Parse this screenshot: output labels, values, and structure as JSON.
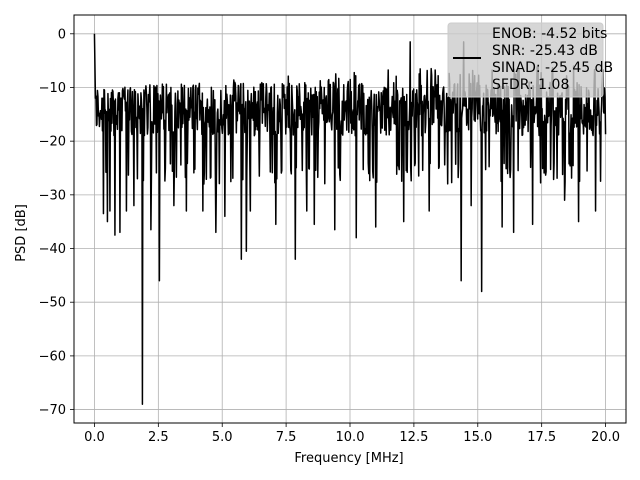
{
  "chart_data": {
    "type": "line",
    "xlabel": "Frequency [MHz]",
    "ylabel": "PSD [dB]",
    "xlim": [
      -0.8,
      20.8
    ],
    "ylim": [
      -72.5,
      3.5
    ],
    "xticks": [
      0.0,
      2.5,
      5.0,
      7.5,
      10.0,
      12.5,
      15.0,
      17.5,
      20.0
    ],
    "xtick_labels": [
      "0.0",
      "2.5",
      "5.0",
      "7.5",
      "10.0",
      "12.5",
      "15.0",
      "17.5",
      "20.0"
    ],
    "yticks": [
      0,
      -10,
      -20,
      -30,
      -40,
      -50,
      -60,
      -70
    ],
    "ytick_labels": [
      "0",
      "−10",
      "−20",
      "−30",
      "−40",
      "−50",
      "−60",
      "−70"
    ],
    "grid": true,
    "legend_position": "top-right",
    "series": [
      {
        "color": "#000000",
        "x_range": [
          0.0,
          20.0
        ],
        "num_points": 1024,
        "baseline_db": -14,
        "upper_envelope_db": [
          [
            0.0,
            -10
          ],
          [
            4.0,
            -9
          ],
          [
            10.0,
            -7
          ],
          [
            15.0,
            -6
          ],
          [
            20.0,
            -6
          ]
        ],
        "lower_envelope_db": -28,
        "peaks": [
          [
            0.0,
            0
          ],
          [
            12.35,
            -1.5
          ],
          [
            14.45,
            -1.5
          ]
        ],
        "dips": [
          [
            0.35,
            -33.5
          ],
          [
            0.5,
            -35
          ],
          [
            0.6,
            -33
          ],
          [
            0.8,
            -37.5
          ],
          [
            1.0,
            -37
          ],
          [
            1.25,
            -33
          ],
          [
            1.55,
            -32
          ],
          [
            1.88,
            -69
          ],
          [
            2.2,
            -36.5
          ],
          [
            2.55,
            -46
          ],
          [
            3.1,
            -32
          ],
          [
            3.6,
            -33
          ],
          [
            4.25,
            -33
          ],
          [
            4.75,
            -37
          ],
          [
            5.1,
            -34
          ],
          [
            5.75,
            -42
          ],
          [
            5.95,
            -40.5
          ],
          [
            6.1,
            -33
          ],
          [
            7.1,
            -35.5
          ],
          [
            7.85,
            -42
          ],
          [
            8.3,
            -33
          ],
          [
            8.6,
            -35.5
          ],
          [
            9.4,
            -36.5
          ],
          [
            10.25,
            -38
          ],
          [
            11.0,
            -36
          ],
          [
            12.1,
            -35
          ],
          [
            13.1,
            -33
          ],
          [
            14.35,
            -46
          ],
          [
            14.75,
            -32
          ],
          [
            15.15,
            -48
          ],
          [
            15.95,
            -36
          ],
          [
            16.4,
            -37
          ],
          [
            17.15,
            -35.5
          ],
          [
            18.4,
            -31
          ],
          [
            18.95,
            -35
          ],
          [
            19.6,
            -33
          ]
        ]
      }
    ],
    "legend_lines": [
      "ENOB: -4.52 bits",
      "SNR: -25.43 dB",
      "SINAD: -25.45 dB",
      "SFDR: 1.08"
    ]
  }
}
